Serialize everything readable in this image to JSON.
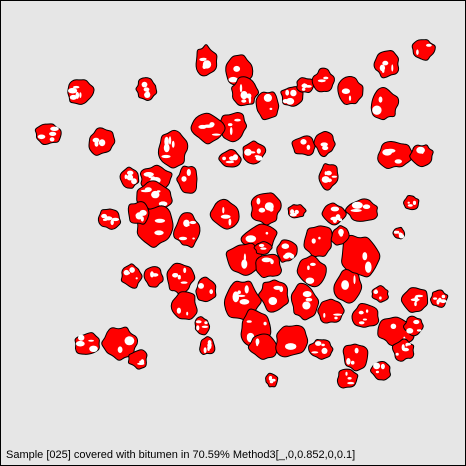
{
  "caption": "Sample [025] covered with bitumen in 70.59% Method3[_,0,0.852,0,0.1]",
  "coverage_percent": 70.59,
  "colors": {
    "background": "#e6e6e6",
    "bitumen": "#ff0000",
    "uncoated": "#ffffff",
    "outline": "#000000"
  }
}
